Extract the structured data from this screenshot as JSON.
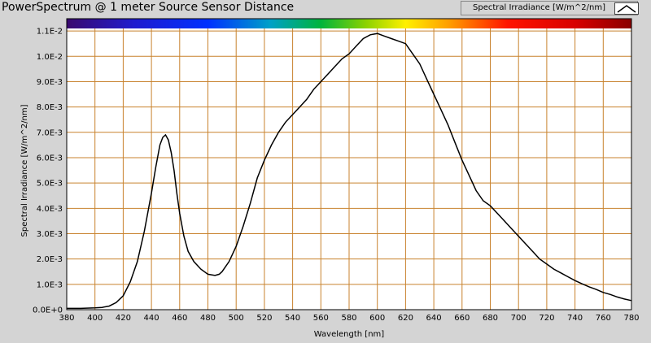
{
  "window": {
    "title": "PowerSpectrum @ 1 meter Source Sensor Distance"
  },
  "legend": {
    "label": "Spectral Irradiance [W/m^2/nm]",
    "swatch_icon": "line-swatch-icon"
  },
  "chart_data": {
    "type": "line",
    "title": "PowerSpectrum @ 1 meter Source Sensor Distance",
    "xlabel": "Wavelength [nm]",
    "ylabel": "Spectral Irradiance [W/m^2/nm]",
    "xlim": [
      380,
      780
    ],
    "ylim": [
      0,
      0.0111
    ],
    "grid": true,
    "legend_position": "top-right",
    "colors": {
      "plot_background": "#ffffff",
      "grid": "#c8822d",
      "line": "#000000",
      "frame_background": "#d4d4d4"
    },
    "spectrum_bar": true,
    "x_ticks": [
      "380",
      "400",
      "420",
      "440",
      "460",
      "480",
      "500",
      "520",
      "540",
      "560",
      "580",
      "600",
      "620",
      "640",
      "660",
      "680",
      "700",
      "720",
      "740",
      "760",
      "780"
    ],
    "y_ticks": [
      "0.0E+0",
      "1.0E-3",
      "2.0E-3",
      "3.0E-3",
      "4.0E-3",
      "5.0E-3",
      "6.0E-3",
      "7.0E-3",
      "8.0E-3",
      "9.0E-3",
      "1.0E-2",
      "1.1E-2"
    ],
    "series": [
      {
        "name": "Spectral Irradiance [W/m^2/nm]",
        "x": [
          380,
          390,
          400,
          405,
          410,
          415,
          420,
          425,
          430,
          435,
          440,
          443,
          446,
          448,
          450,
          452,
          454,
          456,
          458,
          460,
          463,
          466,
          470,
          475,
          480,
          485,
          488,
          490,
          495,
          500,
          505,
          510,
          515,
          520,
          525,
          530,
          535,
          540,
          545,
          550,
          555,
          560,
          565,
          570,
          575,
          580,
          585,
          590,
          595,
          600,
          605,
          610,
          615,
          620,
          625,
          630,
          635,
          640,
          645,
          650,
          655,
          660,
          665,
          670,
          675,
          680,
          685,
          690,
          695,
          700,
          705,
          710,
          715,
          720,
          725,
          730,
          735,
          740,
          745,
          750,
          755,
          760,
          765,
          770,
          775,
          780
        ],
        "y": [
          5e-05,
          5e-05,
          7e-05,
          9e-05,
          0.00014,
          0.00028,
          0.00055,
          0.0011,
          0.0019,
          0.0031,
          0.0046,
          0.0056,
          0.0065,
          0.0068,
          0.0069,
          0.0067,
          0.0062,
          0.0055,
          0.0046,
          0.0038,
          0.0029,
          0.0023,
          0.0019,
          0.0016,
          0.0014,
          0.00135,
          0.0014,
          0.0015,
          0.0019,
          0.0025,
          0.0033,
          0.0042,
          0.0052,
          0.0059,
          0.0065,
          0.007,
          0.0074,
          0.0077,
          0.008,
          0.0083,
          0.0087,
          0.009,
          0.0093,
          0.0096,
          0.0099,
          0.0101,
          0.0104,
          0.0107,
          0.01085,
          0.0109,
          0.0108,
          0.0107,
          0.0106,
          0.0105,
          0.0101,
          0.0097,
          0.0091,
          0.0085,
          0.0079,
          0.0073,
          0.0066,
          0.0059,
          0.0053,
          0.0047,
          0.0043,
          0.0041,
          0.0038,
          0.0035,
          0.0032,
          0.0029,
          0.0026,
          0.0023,
          0.002,
          0.0018,
          0.0016,
          0.00145,
          0.0013,
          0.00115,
          0.00102,
          0.0009,
          0.0008,
          0.00068,
          0.0006,
          0.0005,
          0.00042,
          0.00036
        ]
      }
    ]
  }
}
